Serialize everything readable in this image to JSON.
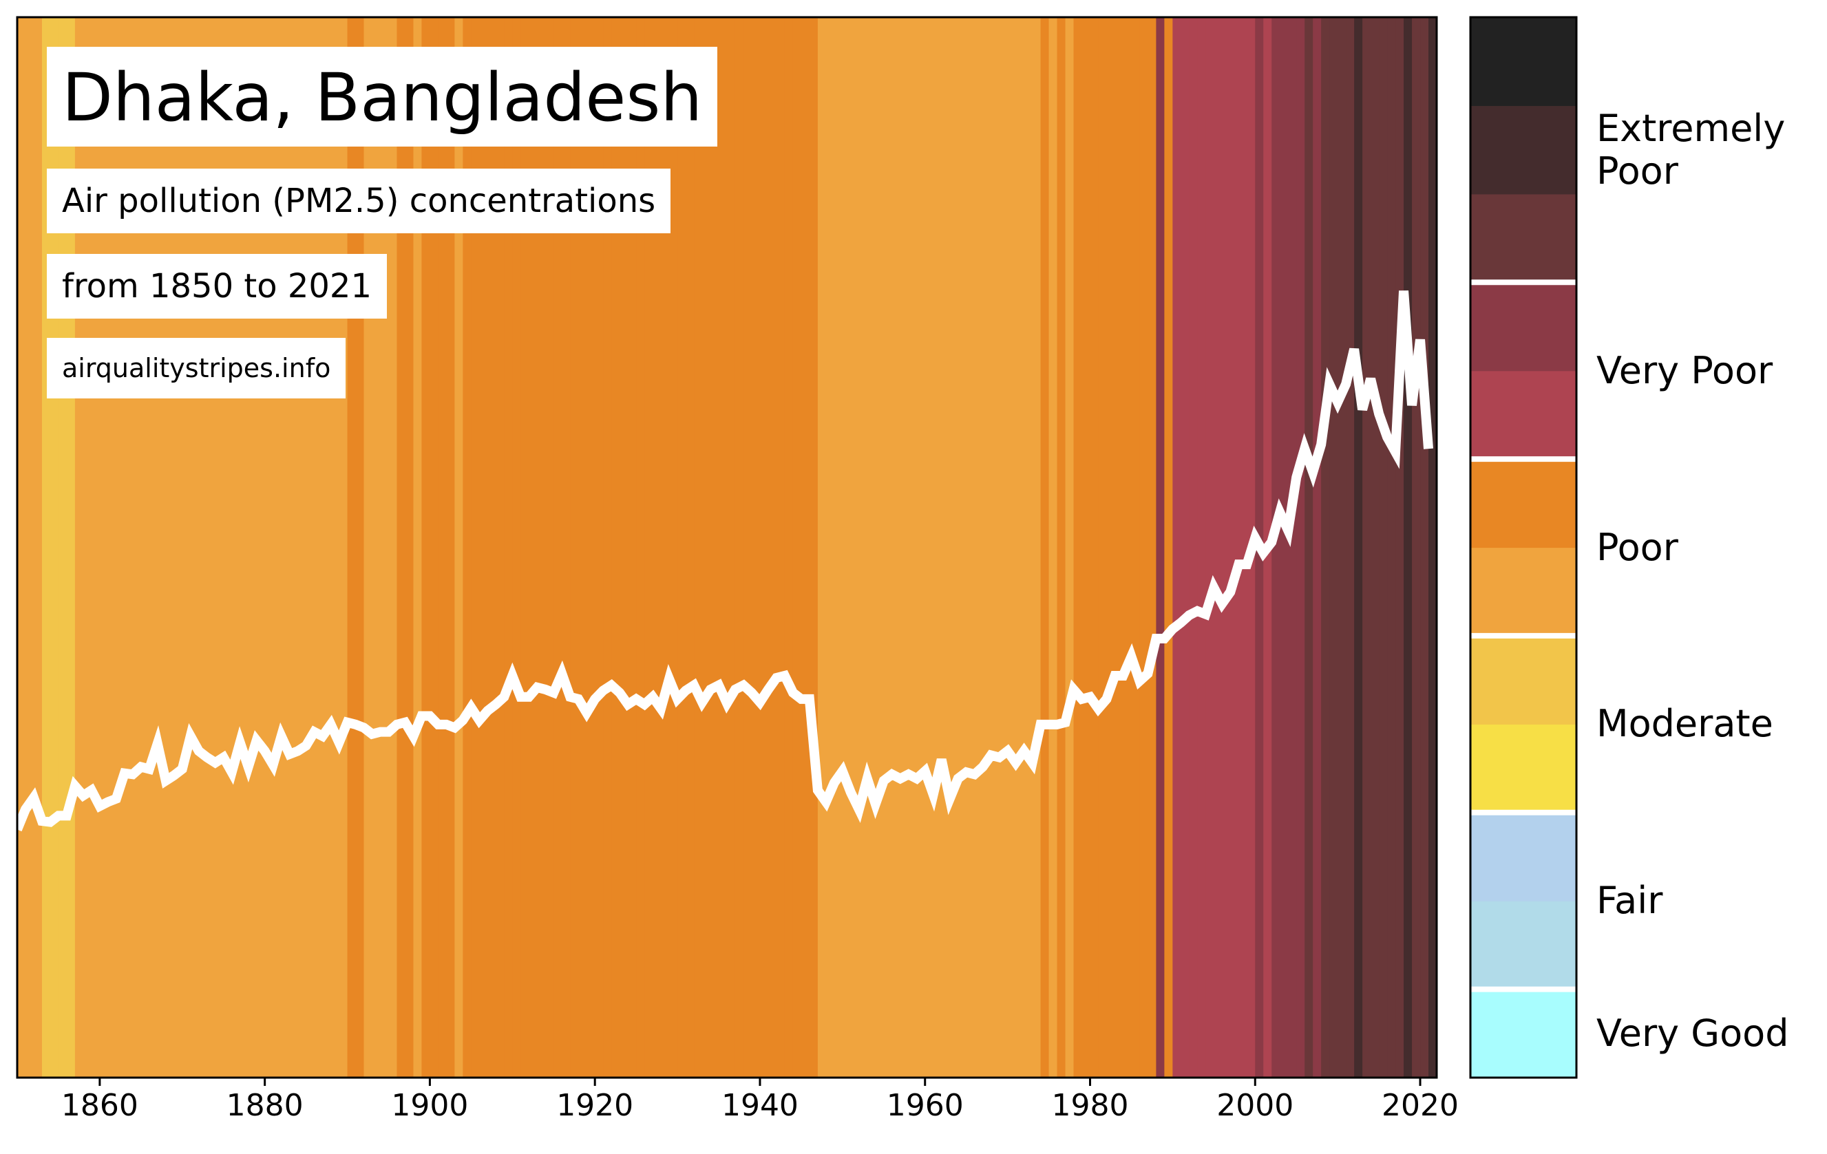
{
  "chart_data": {
    "type": "line",
    "title": "Dhaka, Bangladesh",
    "subtitle": [
      "Air pollution (PM2.5) concentrations",
      "from 1850 to 2021"
    ],
    "source": "airqualitystripes.info",
    "x": [
      1850,
      1851,
      1852,
      1853,
      1854,
      1855,
      1856,
      1857,
      1858,
      1859,
      1860,
      1861,
      1862,
      1863,
      1864,
      1865,
      1866,
      1867,
      1868,
      1869,
      1870,
      1871,
      1872,
      1873,
      1874,
      1875,
      1876,
      1877,
      1878,
      1879,
      1880,
      1881,
      1882,
      1883,
      1884,
      1885,
      1886,
      1887,
      1888,
      1889,
      1890,
      1891,
      1892,
      1893,
      1894,
      1895,
      1896,
      1897,
      1898,
      1899,
      1900,
      1901,
      1902,
      1903,
      1904,
      1905,
      1906,
      1907,
      1908,
      1909,
      1910,
      1911,
      1912,
      1913,
      1914,
      1915,
      1916,
      1917,
      1918,
      1919,
      1920,
      1921,
      1922,
      1923,
      1924,
      1925,
      1926,
      1927,
      1928,
      1929,
      1930,
      1931,
      1932,
      1933,
      1934,
      1935,
      1936,
      1937,
      1938,
      1939,
      1940,
      1941,
      1942,
      1943,
      1944,
      1945,
      1946,
      1947,
      1948,
      1949,
      1950,
      1951,
      1952,
      1953,
      1954,
      1955,
      1956,
      1957,
      1958,
      1959,
      1960,
      1961,
      1962,
      1963,
      1964,
      1965,
      1966,
      1967,
      1968,
      1969,
      1970,
      1971,
      1972,
      1973,
      1974,
      1975,
      1976,
      1977,
      1978,
      1979,
      1980,
      1981,
      1982,
      1983,
      1984,
      1985,
      1986,
      1987,
      1988,
      1989,
      1990,
      1991,
      1992,
      1993,
      1994,
      1995,
      1996,
      1997,
      1998,
      1999,
      2000,
      2001,
      2002,
      2003,
      2004,
      2005,
      2006,
      2007,
      2008,
      2009,
      2010,
      2011,
      2012,
      2013,
      2014,
      2015,
      2016,
      2017,
      2018,
      2019,
      2020,
      2021
    ],
    "series": [
      {
        "color": "#ffffff",
        "values": [
          23.4,
          25.3,
          26.4,
          24.2,
          24.1,
          24.7,
          24.7,
          27.5,
          26.6,
          27.1,
          25.6,
          26.0,
          26.3,
          28.7,
          28.6,
          29.3,
          29.1,
          31.5,
          28.0,
          28.5,
          29.1,
          32.2,
          30.8,
          30.2,
          29.7,
          30.2,
          28.8,
          31.6,
          29.3,
          31.8,
          30.8,
          29.5,
          32.2,
          30.5,
          30.8,
          31.3,
          32.6,
          32.2,
          33.3,
          31.6,
          33.5,
          33.3,
          33.0,
          32.4,
          32.6,
          32.6,
          33.3,
          33.5,
          32.2,
          34.1,
          34.1,
          33.3,
          33.3,
          33.0,
          33.7,
          34.9,
          33.7,
          34.6,
          35.2,
          35.9,
          37.9,
          35.9,
          35.9,
          36.8,
          36.6,
          36.3,
          38.1,
          35.9,
          35.7,
          34.4,
          35.7,
          36.5,
          37.0,
          36.3,
          35.2,
          35.7,
          35.2,
          35.9,
          34.8,
          37.6,
          35.7,
          36.5,
          37.0,
          35.4,
          36.6,
          37.0,
          35.3,
          36.6,
          37.0,
          36.3,
          35.4,
          36.6,
          37.7,
          37.9,
          36.3,
          35.7,
          35.7,
          27.1,
          26.0,
          27.8,
          28.9,
          26.9,
          25.3,
          28.2,
          25.8,
          28.0,
          28.6,
          28.2,
          28.6,
          28.2,
          28.9,
          26.7,
          30.0,
          26.3,
          28.2,
          28.8,
          28.6,
          29.3,
          30.4,
          30.2,
          30.8,
          29.7,
          30.8,
          29.7,
          33.3,
          33.3,
          33.3,
          33.5,
          36.6,
          35.7,
          35.9,
          34.8,
          35.7,
          37.9,
          37.9,
          39.7,
          37.4,
          38.1,
          41.4,
          41.4,
          42.3,
          42.9,
          43.6,
          44.0,
          43.7,
          46.2,
          44.7,
          45.8,
          48.4,
          48.4,
          50.9,
          49.5,
          50.5,
          53.3,
          51.6,
          56.6,
          59.3,
          57.1,
          59.7,
          65.4,
          63.7,
          65.4,
          68.7,
          63.0,
          65.9,
          62.6,
          60.4,
          59.0,
          74.2,
          63.4,
          69.6,
          59.3
        ]
      }
    ],
    "stripe_levels": [
      5,
      5,
      5,
      4,
      4,
      4,
      4,
      5,
      5,
      5,
      5,
      5,
      5,
      5,
      5,
      5,
      5,
      5,
      5,
      5,
      5,
      5,
      5,
      5,
      5,
      5,
      5,
      5,
      5,
      5,
      5,
      5,
      5,
      5,
      5,
      5,
      5,
      5,
      5,
      5,
      6,
      6,
      5,
      5,
      5,
      5,
      6,
      6,
      5,
      6,
      6,
      6,
      6,
      5,
      6,
      6,
      6,
      6,
      6,
      6,
      6,
      6,
      6,
      6,
      6,
      6,
      6,
      6,
      6,
      6,
      6,
      6,
      6,
      6,
      6,
      6,
      6,
      6,
      6,
      6,
      6,
      6,
      6,
      6,
      6,
      6,
      6,
      6,
      6,
      6,
      6,
      6,
      6,
      6,
      6,
      6,
      6,
      5,
      5,
      5,
      5,
      5,
      5,
      5,
      5,
      5,
      5,
      5,
      5,
      5,
      5,
      5,
      5,
      5,
      5,
      5,
      5,
      5,
      5,
      5,
      5,
      5,
      5,
      5,
      6,
      5,
      6,
      5,
      6,
      6,
      6,
      6,
      6,
      6,
      6,
      6,
      6,
      6,
      8,
      6,
      7,
      7,
      7,
      7,
      7,
      7,
      7,
      7,
      7,
      7,
      8,
      7,
      8,
      8,
      8,
      8,
      9,
      8,
      9,
      9,
      9,
      9,
      10,
      9,
      9,
      9,
      9,
      9,
      10,
      9,
      9,
      10
    ],
    "colorbar": {
      "colors": [
        "#a8fdfe",
        "#b1dbe9",
        "#b3d1ed",
        "#f7df46",
        "#f2c54a",
        "#f0a43e",
        "#e88724",
        "#ae4451",
        "#8b3a46",
        "#693739",
        "#442c2d",
        "#222222"
      ],
      "categories": [
        {
          "label": "Very Good",
          "range": [
            0,
            1
          ]
        },
        {
          "label": "Fair",
          "range": [
            1,
            3
          ]
        },
        {
          "label": "Moderate",
          "range": [
            3,
            5
          ]
        },
        {
          "label": "Poor",
          "range": [
            5,
            7
          ]
        },
        {
          "label": "Very Poor",
          "range": [
            7,
            9
          ]
        },
        {
          "label": "Extremely Poor",
          "range": [
            9,
            12
          ]
        }
      ]
    },
    "xlim": [
      1850,
      2022
    ],
    "ylim": [
      0,
      100
    ],
    "xticks": [
      1860,
      1880,
      1900,
      1920,
      1940,
      1960,
      1980,
      2000,
      2020
    ]
  }
}
